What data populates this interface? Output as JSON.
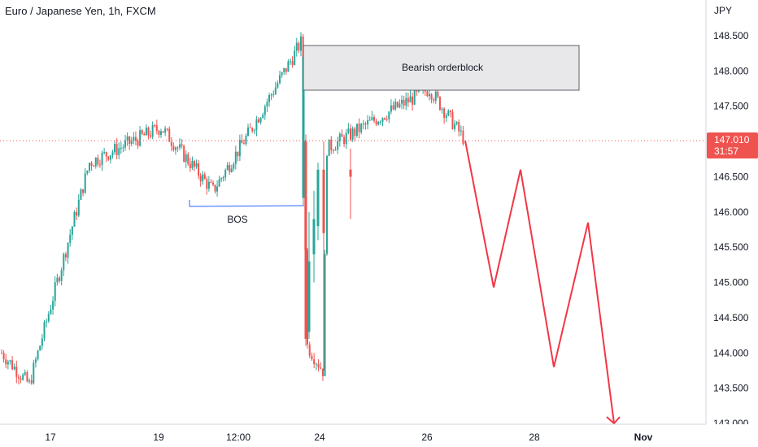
{
  "title": "Euro / Japanese Yen, 1h, FXCM",
  "price_axis": {
    "unit": "JPY",
    "ticks": [
      "148.500",
      "148.000",
      "147.500",
      "147.000",
      "146.500",
      "146.000",
      "145.500",
      "145.000",
      "144.500",
      "144.000",
      "143.500",
      "143.000"
    ]
  },
  "time_axis": {
    "ticks": [
      "17",
      "19",
      "12:00",
      "24",
      "26",
      "28",
      "Nov"
    ]
  },
  "price_label": {
    "price": "147.010",
    "countdown": "31:57"
  },
  "annotations": {
    "orderblock": "Bearish orderblock",
    "bos": "BOS"
  },
  "colors": {
    "up": "#26a69a",
    "down": "#ef5350",
    "projection": "#f23645",
    "bos_line": "#2962ff",
    "box_fill": "#e8e8ea",
    "box_border": "#5d6066"
  },
  "chart_data": {
    "type": "candlestick",
    "symbol": "EUR/JPY",
    "interval": "1h",
    "ylim": [
      143.0,
      148.7
    ],
    "current_price": 147.01,
    "key_points": [
      {
        "x": "start",
        "y": 144.0
      },
      {
        "x": "17",
        "y": 143.55
      },
      {
        "x": "18",
        "y": 146.7
      },
      {
        "x": "19",
        "y": 147.2
      },
      {
        "x": "19-20",
        "y": 146.3
      },
      {
        "x": "12:00",
        "y": 147.1
      },
      {
        "x": "23 high",
        "y": 148.4
      },
      {
        "x": "23 low",
        "y": 144.1
      },
      {
        "x": "24 low",
        "y": 143.75
      },
      {
        "x": "24",
        "y": 146.9
      },
      {
        "x": "25",
        "y": 147.3
      },
      {
        "x": "26 high",
        "y": 147.75
      },
      {
        "x": "26 last",
        "y": 147.01
      }
    ],
    "orderblock_zone": [
      147.75,
      148.35
    ],
    "bos_level": 146.08,
    "projection": [
      147.01,
      144.93,
      146.6,
      143.8,
      145.85,
      143.0
    ]
  }
}
